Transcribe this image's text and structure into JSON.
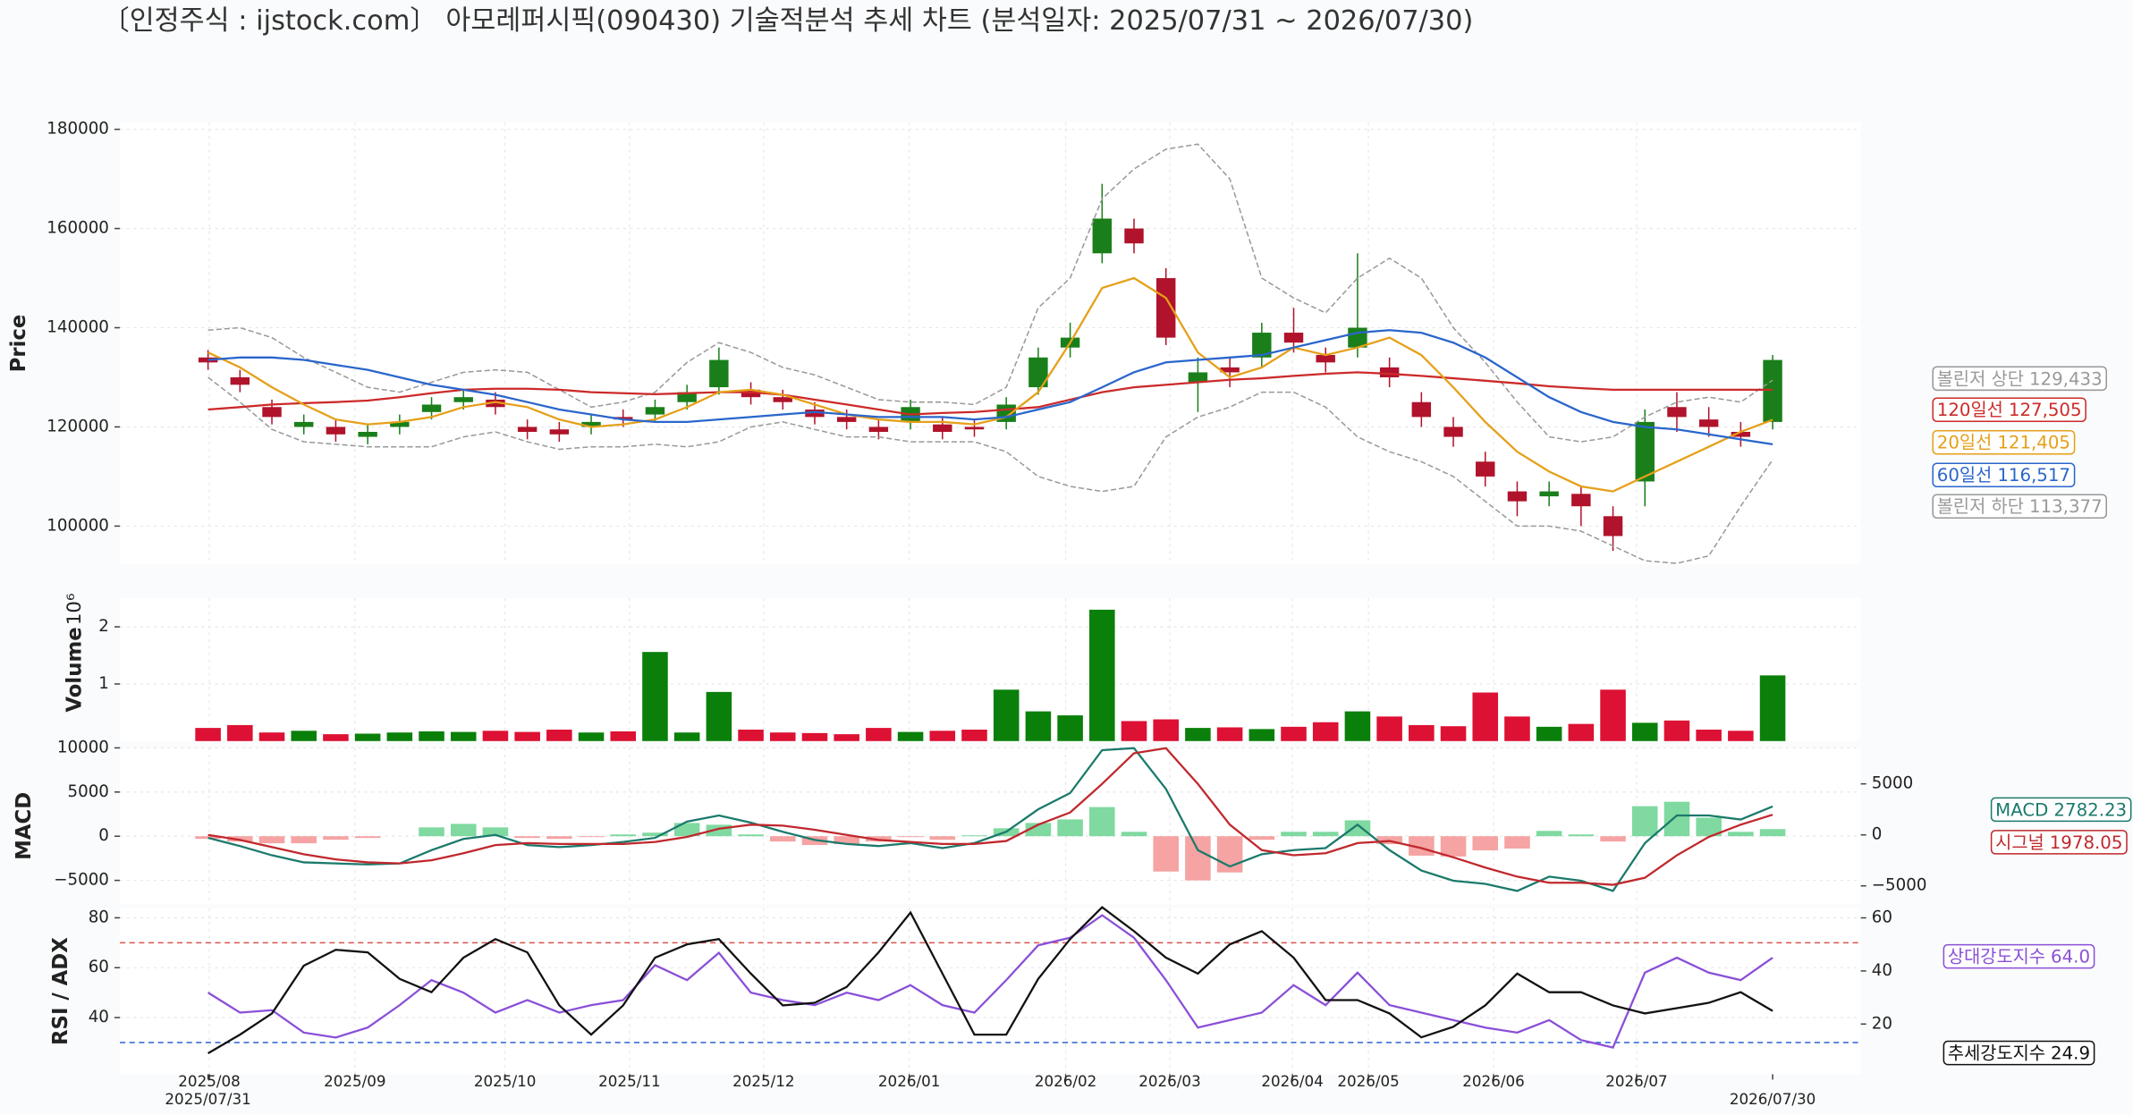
{
  "title": "〔인정주식 : ijstock.com〕 아모레퍼시픽(090430) 기술적분석 추세 차트 (분석일자: 2025/07/31 ~ 2026/07/30)",
  "chart_data": [
    {
      "type": "candlestick",
      "ylabel": "Price",
      "ylim": [
        92300,
        181400
      ],
      "yticks": [
        100000,
        120000,
        140000,
        160000,
        180000
      ],
      "grid": true,
      "up_color": "#1a7f1a",
      "down_color": "#b0132b",
      "open": [
        134000,
        130000,
        124000,
        120000,
        120000,
        118000,
        120000,
        123000,
        125000,
        125500,
        120000,
        119500,
        120000,
        122000,
        122500,
        125000,
        128000,
        127500,
        126000,
        123500,
        122000,
        120000,
        121000,
        120500,
        120000,
        121000,
        128000,
        136000,
        155000,
        160000,
        150000,
        129000,
        132000,
        134000,
        139000,
        134500,
        136000,
        132000,
        125000,
        120000,
        113000,
        107000,
        106000,
        106500,
        102000,
        109000,
        124000,
        121500,
        119000,
        121000
      ],
      "high": [
        135500,
        131500,
        125500,
        122500,
        121500,
        120500,
        122500,
        126000,
        127500,
        127000,
        121500,
        121000,
        122500,
        123500,
        125500,
        128500,
        136000,
        129000,
        127500,
        125000,
        123500,
        121500,
        125500,
        122000,
        121500,
        126000,
        136000,
        141000,
        169000,
        162000,
        152000,
        134000,
        134000,
        141000,
        144000,
        136000,
        155000,
        134000,
        127000,
        122000,
        115000,
        109000,
        109000,
        108000,
        104000,
        123500,
        127000,
        124000,
        121000,
        134500
      ],
      "low": [
        131500,
        127000,
        120500,
        118500,
        117000,
        116500,
        118500,
        121500,
        123500,
        122500,
        117500,
        117000,
        118500,
        120000,
        121000,
        123500,
        126500,
        124500,
        123500,
        120500,
        119500,
        117500,
        119500,
        117500,
        118000,
        119500,
        126500,
        134000,
        153000,
        155000,
        136500,
        123000,
        128000,
        132000,
        135000,
        131000,
        134000,
        128000,
        120000,
        116000,
        108000,
        102000,
        104000,
        100000,
        95000,
        104000,
        119000,
        118000,
        116000,
        119500
      ],
      "close": [
        133000,
        128500,
        122000,
        121000,
        118500,
        119000,
        121000,
        124500,
        126000,
        124000,
        119000,
        118500,
        121000,
        121500,
        124000,
        127000,
        133500,
        126000,
        125000,
        122000,
        121000,
        119000,
        124000,
        119000,
        119500,
        124500,
        134000,
        138000,
        162000,
        157000,
        138000,
        131000,
        131000,
        139000,
        137000,
        133000,
        140000,
        130000,
        122000,
        118000,
        110000,
        105000,
        107000,
        104000,
        98000,
        121000,
        122000,
        120000,
        118000,
        133500
      ],
      "series": [
        {
          "name": "볼린저 상단",
          "color": "#999999",
          "dashed": true,
          "last_label": "129,433",
          "values": [
            139500,
            140000,
            138000,
            134000,
            131000,
            128000,
            127000,
            129000,
            131000,
            131500,
            131000,
            127500,
            124000,
            125000,
            127000,
            133000,
            137000,
            135000,
            132000,
            130500,
            128000,
            125500,
            125000,
            125000,
            124500,
            128000,
            144000,
            150000,
            166000,
            172000,
            176000,
            177000,
            170000,
            150000,
            146000,
            143000,
            150000,
            154000,
            150000,
            140000,
            133000,
            125000,
            118000,
            117000,
            118000,
            122000,
            125000,
            126000,
            125000,
            129433
          ]
        },
        {
          "name": "120일선",
          "color": "#cc2a2a",
          "last_label": "127,505",
          "values": [
            123500,
            124000,
            124500,
            124800,
            125000,
            125300,
            126000,
            126800,
            127500,
            127700,
            127700,
            127500,
            127000,
            126800,
            126600,
            126800,
            127000,
            127000,
            126500,
            125500,
            124500,
            123500,
            122500,
            122800,
            123000,
            123500,
            124000,
            125500,
            127000,
            128000,
            128500,
            129000,
            129500,
            129800,
            130300,
            130700,
            131000,
            130700,
            130300,
            129800,
            129300,
            128800,
            128200,
            127800,
            127500,
            127500,
            127500,
            127500,
            127500,
            127505
          ]
        },
        {
          "name": "20일선",
          "color": "#e5a019",
          "last_label": "121,405",
          "values": [
            135000,
            132000,
            128000,
            124500,
            121500,
            120500,
            121000,
            122000,
            124000,
            125000,
            124000,
            121500,
            120000,
            120500,
            121500,
            124000,
            127000,
            127500,
            126500,
            124500,
            122500,
            121500,
            121000,
            121000,
            120500,
            122000,
            127000,
            137000,
            148000,
            150000,
            146000,
            135000,
            130000,
            132000,
            136000,
            134500,
            136000,
            138000,
            134500,
            128000,
            121000,
            115000,
            111000,
            108000,
            107000,
            110000,
            113000,
            116000,
            119000,
            121405
          ]
        },
        {
          "name": "60일선",
          "color": "#2a66cc",
          "last_label": "116,517",
          "values": [
            133500,
            134000,
            134000,
            133500,
            132500,
            131500,
            130000,
            128500,
            127500,
            126500,
            125000,
            123500,
            122500,
            121500,
            121000,
            121000,
            121500,
            122000,
            122500,
            123000,
            122500,
            122000,
            122000,
            122000,
            121500,
            122000,
            123500,
            125000,
            128000,
            131000,
            133000,
            133500,
            134000,
            134500,
            136000,
            137500,
            139000,
            139500,
            139000,
            137000,
            134000,
            130000,
            126000,
            123000,
            121000,
            120000,
            119500,
            118500,
            117500,
            116517
          ]
        },
        {
          "name": "볼린저 하단",
          "color": "#999999",
          "dashed": true,
          "last_label": "113,377",
          "values": [
            130000,
            125000,
            119500,
            117000,
            116500,
            116000,
            116000,
            116000,
            118000,
            119000,
            117000,
            115500,
            116000,
            116000,
            116500,
            116000,
            117000,
            120000,
            121000,
            119500,
            118000,
            118000,
            117000,
            117000,
            117000,
            115000,
            110000,
            108000,
            107000,
            108000,
            118000,
            122000,
            124000,
            127000,
            127000,
            124000,
            118000,
            115000,
            113000,
            110000,
            105000,
            100000,
            100000,
            99000,
            96000,
            93000,
            92500,
            94000,
            104000,
            113377
          ]
        }
      ]
    },
    {
      "type": "bar",
      "ylabel": "Volume",
      "exponent_label": "10⁶",
      "ylim": [
        0,
        2500000
      ],
      "yticks": [
        {
          "value": 1000000,
          "label": "1"
        },
        {
          "value": 2000000,
          "label": "2"
        }
      ],
      "grid": true,
      "up_color": "#0a800a",
      "down_color": "#dd1133",
      "values": [
        230000,
        280000,
        150000,
        180000,
        120000,
        130000,
        150000,
        170000,
        160000,
        180000,
        160000,
        200000,
        150000,
        170000,
        1560000,
        150000,
        860000,
        200000,
        150000,
        140000,
        120000,
        230000,
        160000,
        180000,
        200000,
        900000,
        520000,
        450000,
        2300000,
        350000,
        380000,
        230000,
        240000,
        210000,
        250000,
        330000,
        520000,
        430000,
        280000,
        260000,
        850000,
        430000,
        250000,
        300000,
        900000,
        320000,
        360000,
        200000,
        180000,
        1150000
      ]
    },
    {
      "type": "line",
      "ylabel": "MACD",
      "ylim": [
        -7700,
        10000
      ],
      "yticks": [
        {
          "value": -5000,
          "label": "−5000"
        },
        0,
        5000,
        10000
      ],
      "grid": true,
      "y2lim": [
        -6800,
        8530
      ],
      "y2ticks": [
        {
          "value": -5000,
          "label": "−5000"
        },
        0,
        5000
      ],
      "histogram": {
        "up_color": "#7fd9a0",
        "down_color": "#f5a3a3",
        "values": [
          -300,
          -600,
          -800,
          -800,
          -400,
          -200,
          0,
          1000,
          1400,
          1000,
          -200,
          -300,
          -100,
          200,
          400,
          1500,
          1300,
          200,
          -600,
          -1000,
          -900,
          -600,
          -100,
          -400,
          100,
          900,
          1500,
          1900,
          3300,
          500,
          -4000,
          -5000,
          -4100,
          -400,
          500,
          500,
          1800,
          -900,
          -2200,
          -2300,
          -1600,
          -1400,
          600,
          200,
          -600,
          3400,
          3900,
          2100,
          500,
          804.18
        ]
      },
      "series": [
        {
          "name": "MACD",
          "color": "#1b7a6c",
          "axis": "y2",
          "values": [
            -300,
            -1100,
            -2000,
            -2700,
            -2800,
            -2900,
            -2800,
            -1500,
            -400,
            0,
            -1000,
            -1200,
            -1000,
            -700,
            -300,
            1300,
            1900,
            1200,
            300,
            -500,
            -900,
            -1100,
            -800,
            -1300,
            -800,
            300,
            2500,
            4100,
            8300,
            8500,
            4500,
            -1500,
            -3100,
            -1900,
            -1500,
            -1300,
            1000,
            -1500,
            -3500,
            -4500,
            -4800,
            -5500,
            -4100,
            -4500,
            -5500,
            -800,
            1900,
            1900,
            1500,
            2782.23
          ]
        },
        {
          "name": "시그널",
          "color": "#c0282d",
          "axis": "y2",
          "values": [
            0,
            -500,
            -1200,
            -1900,
            -2400,
            -2700,
            -2800,
            -2500,
            -1800,
            -1000,
            -800,
            -900,
            -900,
            -900,
            -700,
            -200,
            600,
            1000,
            900,
            500,
            0,
            -500,
            -700,
            -900,
            -900,
            -600,
            1000,
            2200,
            5000,
            8000,
            8500,
            5000,
            1000,
            -1500,
            -2000,
            -1800,
            -800,
            -600,
            -1300,
            -2200,
            -3200,
            -4100,
            -4700,
            -4700,
            -4900,
            -4200,
            -2000,
            -200,
            1000,
            1978.05
          ]
        }
      ]
    },
    {
      "type": "line",
      "ylabel": "RSI / ADX",
      "ylim": [
        17.3,
        83.8
      ],
      "yticks": [
        40,
        60,
        80
      ],
      "grid": true,
      "y2lim": [
        1.1,
        63.6
      ],
      "y2ticks": [
        20,
        40,
        60
      ],
      "hlines": [
        {
          "value": 70,
          "color": "#d9534f"
        },
        {
          "value": 30,
          "color": "#3a6fd8"
        }
      ],
      "series": [
        {
          "name": "상대강도지수",
          "color": "#8a4fd8",
          "last_label": "64.0",
          "values": [
            50,
            42,
            43,
            34,
            32,
            36,
            45,
            55,
            50,
            42,
            47,
            42,
            45,
            47,
            61,
            55,
            66,
            50,
            47,
            45,
            50,
            47,
            53,
            45,
            42,
            55,
            69,
            72,
            81,
            72,
            55,
            36,
            39,
            42,
            53,
            45,
            58,
            45,
            42,
            39,
            36,
            34,
            39,
            31,
            28,
            58,
            64,
            58,
            55,
            64.0
          ]
        },
        {
          "name": "추세강도지수",
          "color": "#111111",
          "axis": "y2",
          "values": [
            9,
            16,
            24,
            42,
            48,
            47,
            37,
            32,
            45,
            52,
            47,
            27,
            16,
            27,
            45,
            50,
            52,
            39,
            27,
            28,
            34,
            47,
            62,
            39,
            16,
            16,
            37,
            52,
            64,
            55,
            45,
            39,
            50,
            55,
            45,
            29,
            29,
            24,
            15,
            19,
            27,
            39,
            32,
            32,
            27,
            24,
            26,
            28,
            32,
            24.9
          ]
        }
      ],
      "x": [
        0,
        5,
        10,
        15,
        20,
        25,
        30,
        35,
        40,
        45,
        50,
        55,
        60,
        65,
        70,
        75,
        80,
        85,
        90,
        95,
        100,
        105,
        110,
        115,
        120,
        125,
        130,
        135,
        140,
        145,
        150,
        155,
        160,
        165,
        170,
        175,
        180,
        185,
        190,
        195,
        200,
        205,
        210,
        215,
        220,
        225,
        230,
        235,
        240,
        245
      ],
      "xlim": [
        -13.8,
        258.8
      ],
      "xticks": [
        {
          "value": 0.2,
          "label": "2025/08"
        },
        {
          "value": 23,
          "label": "2025/09"
        },
        {
          "value": 46.5,
          "label": "2025/10"
        },
        {
          "value": 66,
          "label": "2025/11"
        },
        {
          "value": 87,
          "label": "2025/12"
        },
        {
          "value": 109.8,
          "label": "2026/01"
        },
        {
          "value": 134.3,
          "label": "2026/02"
        },
        {
          "value": 150.6,
          "label": "2026/03"
        },
        {
          "value": 169.8,
          "label": "2026/04"
        },
        {
          "value": 181.7,
          "label": "2026/05"
        },
        {
          "value": 201.3,
          "label": "2026/06"
        },
        {
          "value": 223.7,
          "label": "2026/07"
        }
      ],
      "xticks_dates": [
        {
          "value": 0,
          "label": "2025/07/31"
        },
        {
          "value": 245,
          "label": "2026/07/30"
        }
      ]
    }
  ]
}
